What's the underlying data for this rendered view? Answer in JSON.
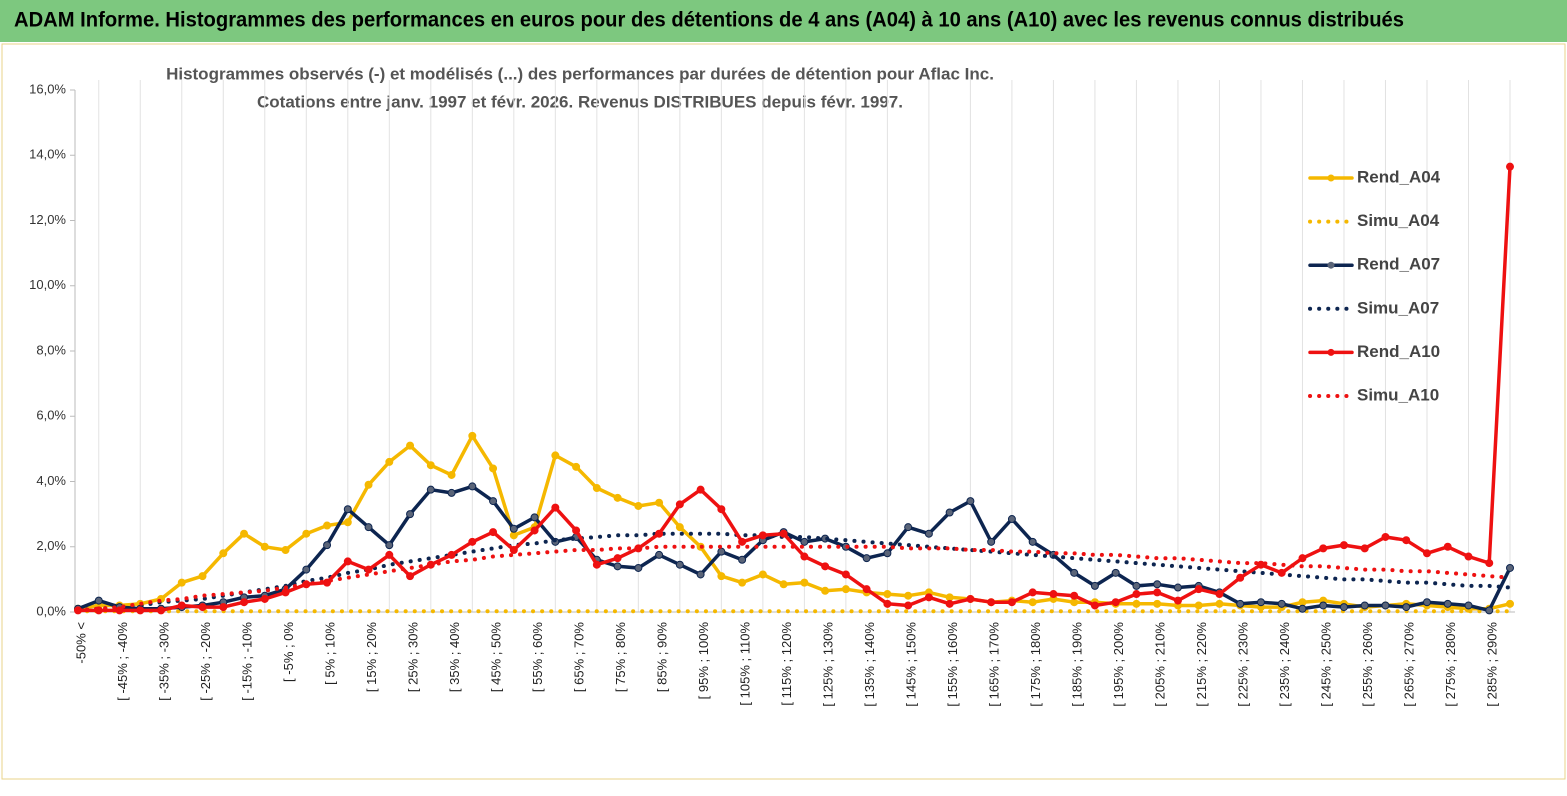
{
  "header": {
    "title": "ADAM Informe. Histogrammes des performances en euros pour des détentions de 4 ans (A04) à 10 ans (A10) avec les revenus connus distribués"
  },
  "chart_data": {
    "type": "line",
    "subtitle": [
      "Histogrammes observés (-) et modélisés (...) des performances par durées de détention pour Aflac Inc.",
      "Cotations entre janv. 1997 et févr. 2026. Revenus DISTRIBUES depuis févr. 1997."
    ],
    "categories": [
      "-50% <",
      null,
      "[ -45% ; -40%",
      null,
      "[ -35% ; -30%",
      null,
      "[ -25% ; -20%",
      null,
      "[ -15% ; -10%",
      null,
      "[ -5% ; 0%",
      null,
      "[ 5% ; 10%",
      null,
      "[ 15% ; 20%",
      null,
      "[ 25% ; 30%",
      null,
      "[ 35% ; 40%",
      null,
      "[ 45% ; 50%",
      null,
      "[ 55% ; 60%",
      null,
      "[ 65% ; 70%",
      null,
      "[ 75% ; 80%",
      null,
      "[ 85% ; 90%",
      null,
      "[ 95% ; 100%",
      null,
      "[ 105% ; 110%",
      null,
      "[ 115% ; 120%",
      null,
      "[ 125% ; 130%",
      null,
      "[ 135% ; 140%",
      null,
      "[ 145% ; 150%",
      null,
      "[ 155% ; 160%",
      null,
      "[ 165% ; 170%",
      null,
      "[ 175% ; 180%",
      null,
      "[ 185% ; 190%",
      null,
      "[ 195% ; 200%",
      null,
      "[ 205% ; 210%",
      null,
      "[ 215% ; 220%",
      null,
      "[ 225% ; 230%",
      null,
      "[ 235% ; 240%",
      null,
      "[ 245% ; 250%",
      null,
      "[ 255% ; 260%",
      null,
      "[ 265% ; 270%",
      null,
      "[ 275% ; 280%",
      null,
      "[ 285% ; 290%",
      null
    ],
    "ylim": [
      0,
      16
    ],
    "yticks": [
      {
        "value": 0,
        "label": "0,0%"
      },
      {
        "value": 2,
        "label": "2,0%"
      },
      {
        "value": 4,
        "label": "4,0%"
      },
      {
        "value": 6,
        "label": "6,0%"
      },
      {
        "value": 8,
        "label": "8,0%"
      },
      {
        "value": 10,
        "label": "10,0%"
      },
      {
        "value": 12,
        "label": "12,0%"
      },
      {
        "value": 14,
        "label": "14,0%"
      },
      {
        "value": 16,
        "label": "16,0%"
      }
    ],
    "legend": "right",
    "series": [
      {
        "name": "Rend_A04",
        "color": "#f5b800",
        "style": "solid",
        "markers": true,
        "values": [
          0.1,
          0.2,
          0.2,
          0.25,
          0.4,
          0.9,
          1.1,
          1.8,
          2.4,
          2.0,
          1.9,
          2.4,
          2.65,
          2.75,
          3.9,
          4.6,
          5.1,
          4.5,
          4.2,
          5.4,
          4.4,
          2.35,
          2.6,
          4.8,
          4.45,
          3.8,
          3.5,
          3.25,
          3.35,
          2.6,
          2.0,
          1.1,
          0.9,
          1.15,
          0.85,
          0.9,
          0.65,
          0.7,
          0.6,
          0.55,
          0.5,
          0.6,
          0.45,
          0.4,
          0.3,
          0.35,
          0.3,
          0.4,
          0.3,
          0.3,
          0.25,
          0.25,
          0.25,
          0.2,
          0.2,
          0.25,
          0.2,
          0.15,
          0.15,
          0.3,
          0.35,
          0.25,
          0.15,
          0.2,
          0.25,
          0.2,
          0.15,
          0.1,
          0.1,
          0.25
        ]
      },
      {
        "name": "Simu_A04",
        "color": "#f5b800",
        "style": "dotted",
        "markers": false,
        "values": [
          0.02,
          0.02,
          0.02,
          0.02,
          0.02,
          0.02,
          0.02,
          0.02,
          0.02,
          0.02,
          0.02,
          0.02,
          0.02,
          0.02,
          0.02,
          0.02,
          0.02,
          0.02,
          0.02,
          0.02,
          0.02,
          0.02,
          0.02,
          0.02,
          0.02,
          0.02,
          0.02,
          0.02,
          0.02,
          0.02,
          0.02,
          0.02,
          0.02,
          0.02,
          0.02,
          0.02,
          0.02,
          0.02,
          0.02,
          0.02,
          0.02,
          0.02,
          0.02,
          0.02,
          0.02,
          0.02,
          0.02,
          0.02,
          0.02,
          0.02,
          0.02,
          0.02,
          0.02,
          0.02,
          0.02,
          0.02,
          0.02,
          0.02,
          0.02,
          0.02,
          0.02,
          0.02,
          0.02,
          0.02,
          0.02,
          0.02,
          0.02,
          0.02,
          0.02,
          0.02
        ]
      },
      {
        "name": "Rend_A07",
        "color": "#0d2550",
        "style": "solid",
        "markers": true,
        "values": [
          0.1,
          0.35,
          0.15,
          0.1,
          0.1,
          0.15,
          0.2,
          0.3,
          0.45,
          0.5,
          0.7,
          1.3,
          2.05,
          3.15,
          2.6,
          2.05,
          3.0,
          3.75,
          3.65,
          3.85,
          3.4,
          2.55,
          2.9,
          2.15,
          2.3,
          1.6,
          1.4,
          1.35,
          1.75,
          1.45,
          1.15,
          1.85,
          1.6,
          2.2,
          2.45,
          2.15,
          2.25,
          2.0,
          1.65,
          1.8,
          2.6,
          2.4,
          3.05,
          3.4,
          2.15,
          2.85,
          2.15,
          1.75,
          1.2,
          0.8,
          1.2,
          0.8,
          0.85,
          0.75,
          0.8,
          0.6,
          0.25,
          0.3,
          0.25,
          0.1,
          0.2,
          0.15,
          0.2,
          0.2,
          0.15,
          0.3,
          0.25,
          0.2,
          0.05,
          1.35
        ]
      },
      {
        "name": "Simu_A07",
        "color": "#0d2550",
        "style": "dotted",
        "markers": false,
        "values": [
          0.05,
          0.1,
          0.15,
          0.2,
          0.3,
          0.35,
          0.4,
          0.5,
          0.6,
          0.7,
          0.8,
          0.95,
          1.05,
          1.2,
          1.3,
          1.45,
          1.55,
          1.65,
          1.75,
          1.85,
          1.95,
          2.05,
          2.1,
          2.2,
          2.25,
          2.3,
          2.35,
          2.35,
          2.4,
          2.4,
          2.4,
          2.4,
          2.35,
          2.35,
          2.3,
          2.3,
          2.25,
          2.2,
          2.15,
          2.1,
          2.05,
          2.0,
          1.95,
          1.9,
          1.85,
          1.8,
          1.75,
          1.7,
          1.65,
          1.6,
          1.55,
          1.5,
          1.45,
          1.4,
          1.35,
          1.3,
          1.25,
          1.2,
          1.15,
          1.1,
          1.05,
          1.0,
          1.0,
          0.95,
          0.9,
          0.9,
          0.85,
          0.8,
          0.8,
          0.75
        ]
      },
      {
        "name": "Rend_A10",
        "color": "#ee1111",
        "style": "solid",
        "markers": true,
        "values": [
          0.05,
          0.05,
          0.05,
          0.05,
          0.05,
          0.2,
          0.15,
          0.15,
          0.3,
          0.4,
          0.6,
          0.85,
          0.9,
          1.55,
          1.3,
          1.75,
          1.1,
          1.45,
          1.75,
          2.15,
          2.45,
          1.9,
          2.5,
          3.2,
          2.5,
          1.45,
          1.65,
          1.95,
          2.4,
          3.3,
          3.75,
          3.15,
          2.15,
          2.35,
          2.4,
          1.7,
          1.4,
          1.15,
          0.7,
          0.25,
          0.2,
          0.45,
          0.25,
          0.4,
          0.3,
          0.3,
          0.6,
          0.55,
          0.5,
          0.2,
          0.3,
          0.55,
          0.6,
          0.35,
          0.7,
          0.55,
          1.05,
          1.45,
          1.2,
          1.65,
          1.95,
          2.05,
          1.95,
          2.3,
          2.2,
          1.8,
          2.0,
          1.7,
          1.5,
          13.65
        ]
      },
      {
        "name": "Simu_A10",
        "color": "#ee1111",
        "style": "dotted",
        "markers": false,
        "values": [
          0.05,
          0.1,
          0.15,
          0.25,
          0.35,
          0.4,
          0.5,
          0.55,
          0.6,
          0.65,
          0.75,
          0.85,
          0.95,
          1.05,
          1.15,
          1.25,
          1.35,
          1.45,
          1.55,
          1.6,
          1.7,
          1.75,
          1.8,
          1.85,
          1.9,
          1.9,
          1.95,
          1.95,
          2.0,
          2.0,
          2.0,
          2.0,
          2.0,
          2.0,
          2.0,
          2.0,
          2.0,
          2.0,
          2.0,
          2.0,
          1.95,
          1.95,
          1.95,
          1.9,
          1.9,
          1.85,
          1.85,
          1.8,
          1.8,
          1.75,
          1.75,
          1.7,
          1.65,
          1.65,
          1.6,
          1.55,
          1.5,
          1.5,
          1.45,
          1.4,
          1.4,
          1.35,
          1.3,
          1.3,
          1.25,
          1.25,
          1.2,
          1.15,
          1.1,
          1.05
        ]
      }
    ]
  }
}
